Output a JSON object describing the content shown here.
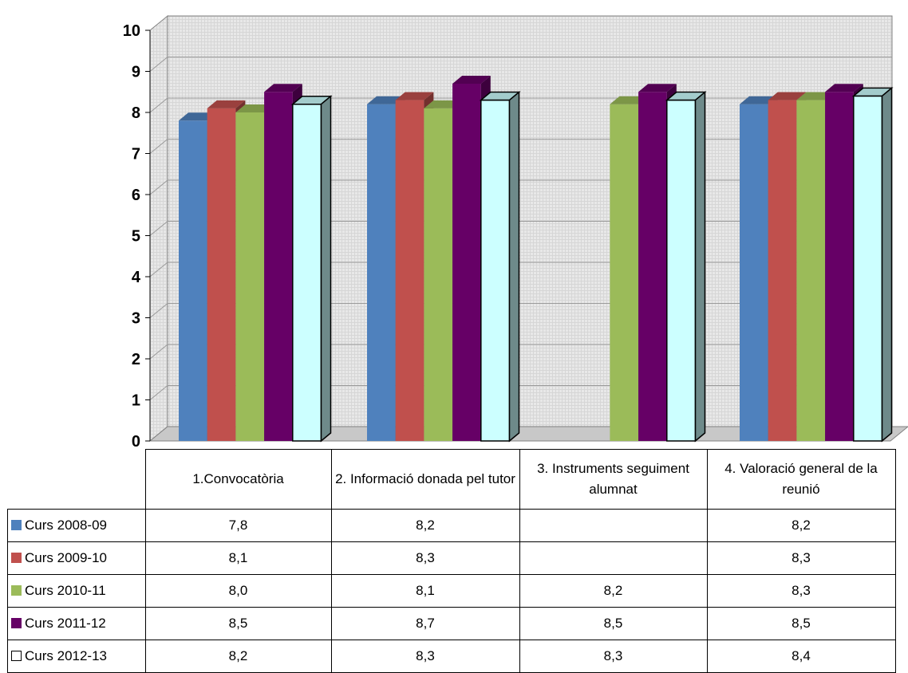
{
  "chart_data": {
    "type": "bar",
    "categories": [
      "1.Convocatòria",
      "2. Informació donada pel tutor",
      "3. Instruments seguiment alumnat",
      "4. Valoració general de la reunió"
    ],
    "series": [
      {
        "name": "Curs 2008-09",
        "color": "#4f81bd",
        "values": [
          7.8,
          8.2,
          null,
          8.2
        ],
        "labels": [
          "7,8",
          "8,2",
          "",
          "8,2"
        ]
      },
      {
        "name": "Curs 2009-10",
        "color": "#c0504d",
        "values": [
          8.1,
          8.3,
          null,
          8.3
        ],
        "labels": [
          "8,1",
          "8,3",
          "",
          "8,3"
        ]
      },
      {
        "name": "Curs 2010-11",
        "color": "#9bbb59",
        "values": [
          8.0,
          8.1,
          8.2,
          8.3
        ],
        "labels": [
          "8,0",
          "8,1",
          "8,2",
          "8,3"
        ]
      },
      {
        "name": "Curs 2011-12",
        "color": "#660066",
        "values": [
          8.5,
          8.7,
          8.5,
          8.5
        ],
        "labels": [
          "8,5",
          "8,7",
          "8,5",
          "8,5"
        ]
      },
      {
        "name": "Curs 2012-13",
        "color": "#ccffff",
        "values": [
          8.2,
          8.3,
          8.3,
          8.4
        ],
        "labels": [
          "8,2",
          "8,3",
          "8,3",
          "8,4"
        ]
      }
    ],
    "yticks": [
      "0",
      "1",
      "2",
      "3",
      "4",
      "5",
      "6",
      "7",
      "8",
      "9",
      "10"
    ],
    "ylim": [
      0,
      10
    ],
    "title": "",
    "xlabel": "",
    "ylabel": "",
    "grid": true,
    "legend": "data table (left)",
    "style": "3d clustered columns with data table"
  }
}
